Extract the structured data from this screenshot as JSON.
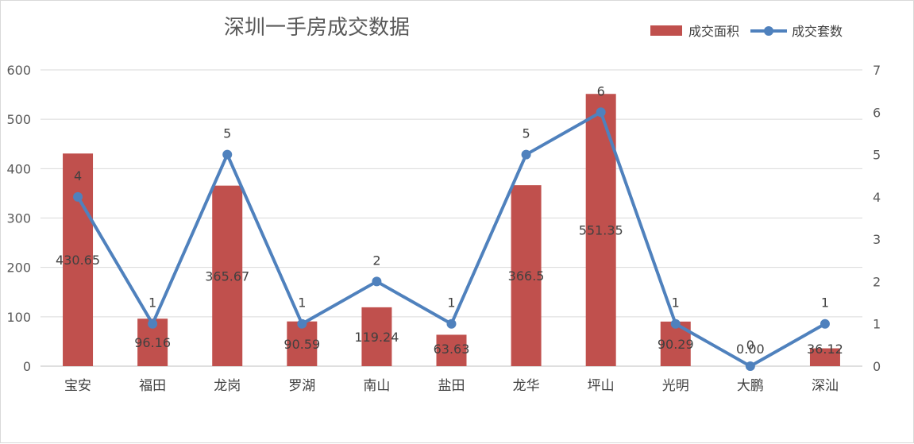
{
  "chart_data": {
    "type": "bar",
    "title": "深圳一手房成交数据",
    "categories": [
      "宝安",
      "福田",
      "龙岗",
      "罗湖",
      "南山",
      "盐田",
      "龙华",
      "坪山",
      "光明",
      "大鹏",
      "深汕"
    ],
    "series": [
      {
        "name": "成交面积",
        "type": "bar",
        "axis": "left",
        "color": "#C0504D",
        "values": [
          430.65,
          96.16,
          365.67,
          90.59,
          119.24,
          63.63,
          366.5,
          551.35,
          90.29,
          0.0,
          36.12
        ],
        "labels": [
          "430.65",
          "96.16",
          "365.67",
          "90.59",
          "119.24",
          "63.63",
          "366.5",
          "551.35",
          "90.29",
          "0.00",
          "36.12"
        ]
      },
      {
        "name": "成交套数",
        "type": "line",
        "axis": "right",
        "color": "#4F81BD",
        "values": [
          4,
          1,
          5,
          1,
          2,
          1,
          5,
          6,
          1,
          0,
          1
        ],
        "labels": [
          "4",
          "1",
          "5",
          "1",
          "2",
          "1",
          "5",
          "6",
          "1",
          "0",
          "1"
        ]
      }
    ],
    "ylim_left": [
      0,
      600
    ],
    "yticks_left": [
      "0",
      "100",
      "200",
      "300",
      "400",
      "500",
      "600"
    ],
    "ylim_right": [
      0,
      7
    ],
    "yticks_right": [
      "0",
      "1",
      "2",
      "3",
      "4",
      "5",
      "6",
      "7"
    ],
    "grid": true,
    "legend_position": "top-right"
  }
}
